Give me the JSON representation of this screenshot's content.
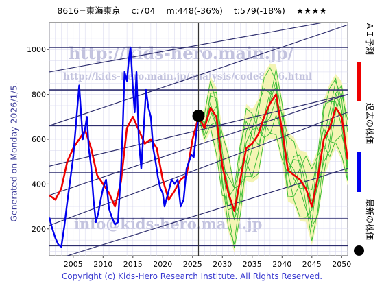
{
  "header": {
    "code": "8616=東海東京",
    "current": "c:704",
    "min": "m:448(-36%)",
    "target": "t:579(-18%)",
    "stars": "★★★★"
  },
  "side_label": "Generated on Monday 2026/1/5.",
  "copyright": "Copyright (c) Kids-Hero Research Institute. All Rights Reserved.",
  "watermarks": {
    "url": "http://kids-hero.main.jp/",
    "analysis_url": "http://kids-hero.main.jp/analysis/code8616.html",
    "email": "info@kids-hero.main.jp"
  },
  "legend": {
    "ai_forecast": "ＡＩ予測",
    "past_price": "過去の株価",
    "latest_price": "最新の株価"
  },
  "colors": {
    "ai": "#ee0000",
    "past": "#0000ee",
    "ensemble": "#33bb33",
    "band": "#f4f4b4",
    "channel": "#2e2e6e"
  },
  "chart_data": {
    "type": "line",
    "title": "",
    "xlabel": "",
    "ylabel": "",
    "xlim": [
      2001,
      2051
    ],
    "ylim": [
      80,
      1120
    ],
    "xticks": [
      2005,
      2010,
      2015,
      2020,
      2025,
      2030,
      2035,
      2040,
      2045,
      2050
    ],
    "yticks": [
      200,
      400,
      600,
      800,
      1000
    ],
    "grid": true,
    "current_point": {
      "x": 2026.0,
      "y": 704
    },
    "horizontal_levels": [
      1010,
      820,
      660,
      450,
      245,
      125
    ],
    "channel_lines": [
      {
        "x": [
          2001,
          2051
        ],
        "y": [
          900,
          1140
        ]
      },
      {
        "x": [
          2001,
          2051
        ],
        "y": [
          660,
          1110
        ]
      },
      {
        "x": [
          2001,
          2051
        ],
        "y": [
          480,
          800
        ]
      },
      {
        "x": [
          2001,
          2051
        ],
        "y": [
          350,
          800
        ]
      },
      {
        "x": [
          2001,
          2051
        ],
        "y": [
          215,
          720
        ]
      },
      {
        "x": [
          2001,
          2051
        ],
        "y": [
          55,
          470
        ]
      }
    ],
    "series": [
      {
        "name": "過去の株価",
        "x": [
          2001.0,
          2001.5,
          2002.0,
          2002.5,
          2003.0,
          2003.5,
          2004.0,
          2004.5,
          2005.0,
          2005.5,
          2006.0,
          2006.3,
          2006.6,
          2007.0,
          2007.3,
          2007.6,
          2008.0,
          2008.4,
          2008.8,
          2009.2,
          2009.6,
          2010.0,
          2010.5,
          2011.0,
          2011.5,
          2012.0,
          2012.5,
          2013.0,
          2013.3,
          2013.6,
          2014.0,
          2014.3,
          2014.6,
          2015.0,
          2015.3,
          2015.6,
          2016.0,
          2016.4,
          2016.8,
          2017.2,
          2017.6,
          2018.0,
          2018.4,
          2018.8,
          2019.2,
          2019.6,
          2020.0,
          2020.3,
          2020.6,
          2021.0,
          2021.5,
          2022.0,
          2022.5,
          2023.0,
          2023.5,
          2024.0,
          2024.4,
          2024.8,
          2025.2,
          2025.6,
          2026.0
        ],
        "y": [
          250,
          200,
          160,
          130,
          120,
          210,
          320,
          420,
          520,
          680,
          840,
          720,
          600,
          650,
          700,
          560,
          480,
          330,
          230,
          270,
          330,
          380,
          420,
          290,
          250,
          220,
          230,
          460,
          650,
          900,
          860,
          950,
          1010,
          830,
          720,
          900,
          590,
          470,
          640,
          820,
          740,
          700,
          560,
          500,
          430,
          380,
          360,
          300,
          330,
          370,
          420,
          400,
          420,
          300,
          330,
          470,
          500,
          530,
          520,
          620,
          704
        ]
      },
      {
        "name": "ＡＩ予測",
        "x": [
          2001.0,
          2002.0,
          2003.0,
          2004.0,
          2005.0,
          2006.0,
          2007.0,
          2008.0,
          2009.0,
          2010.0,
          2011.0,
          2012.0,
          2013.0,
          2014.0,
          2015.0,
          2016.0,
          2017.0,
          2018.0,
          2019.0,
          2020.0,
          2021.0,
          2022.0,
          2023.0,
          2024.0,
          2025.0,
          2026.0,
          2027.0,
          2028.0,
          2029.0,
          2030.0,
          2031.0,
          2032.0,
          2033.0,
          2034.0,
          2035.0,
          2036.0,
          2037.0,
          2038.0,
          2039.0,
          2040.0,
          2041.0,
          2042.0,
          2043.0,
          2044.0,
          2045.0,
          2046.0,
          2047.0,
          2048.0,
          2049.0,
          2050.0,
          2051.0
        ],
        "y": [
          350,
          330,
          380,
          500,
          560,
          600,
          640,
          560,
          440,
          400,
          360,
          300,
          410,
          650,
          700,
          640,
          580,
          600,
          560,
          420,
          330,
          370,
          420,
          440,
          600,
          700,
          650,
          740,
          700,
          480,
          360,
          280,
          420,
          560,
          580,
          620,
          700,
          760,
          800,
          640,
          460,
          440,
          420,
          380,
          300,
          430,
          600,
          650,
          740,
          700,
          510
        ]
      }
    ],
    "ensemble_count": 8,
    "ensemble_start": 2026.0
  }
}
